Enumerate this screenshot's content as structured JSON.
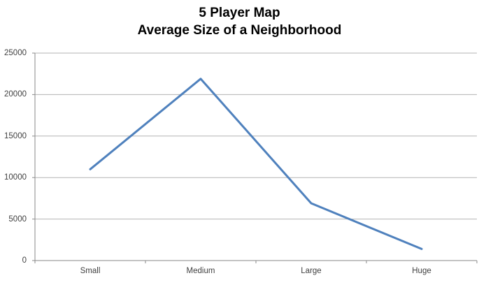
{
  "chart_data": {
    "type": "line",
    "title": "5 Player Map",
    "subtitle": "Average Size of a Neighborhood",
    "categories": [
      "Small",
      "Medium",
      "Large",
      "Huge"
    ],
    "series": [
      {
        "name": "Average Size of a Neighborhood",
        "values": [
          11000,
          21900,
          6900,
          1400
        ]
      }
    ],
    "xlabel": "",
    "ylabel": "",
    "ylim": [
      0,
      25000
    ],
    "ytick_step": 5000,
    "ytick_labels": [
      "0",
      "5000",
      "10000",
      "15000",
      "20000",
      "25000"
    ],
    "grid": true,
    "legend": "none",
    "colors": {
      "line": "#4F81BD",
      "gridline": "#B3B3B3",
      "axis": "#8A8A8A",
      "tick_label": "#3F3F3F",
      "title": "#000000",
      "background": "#FFFFFF"
    }
  }
}
